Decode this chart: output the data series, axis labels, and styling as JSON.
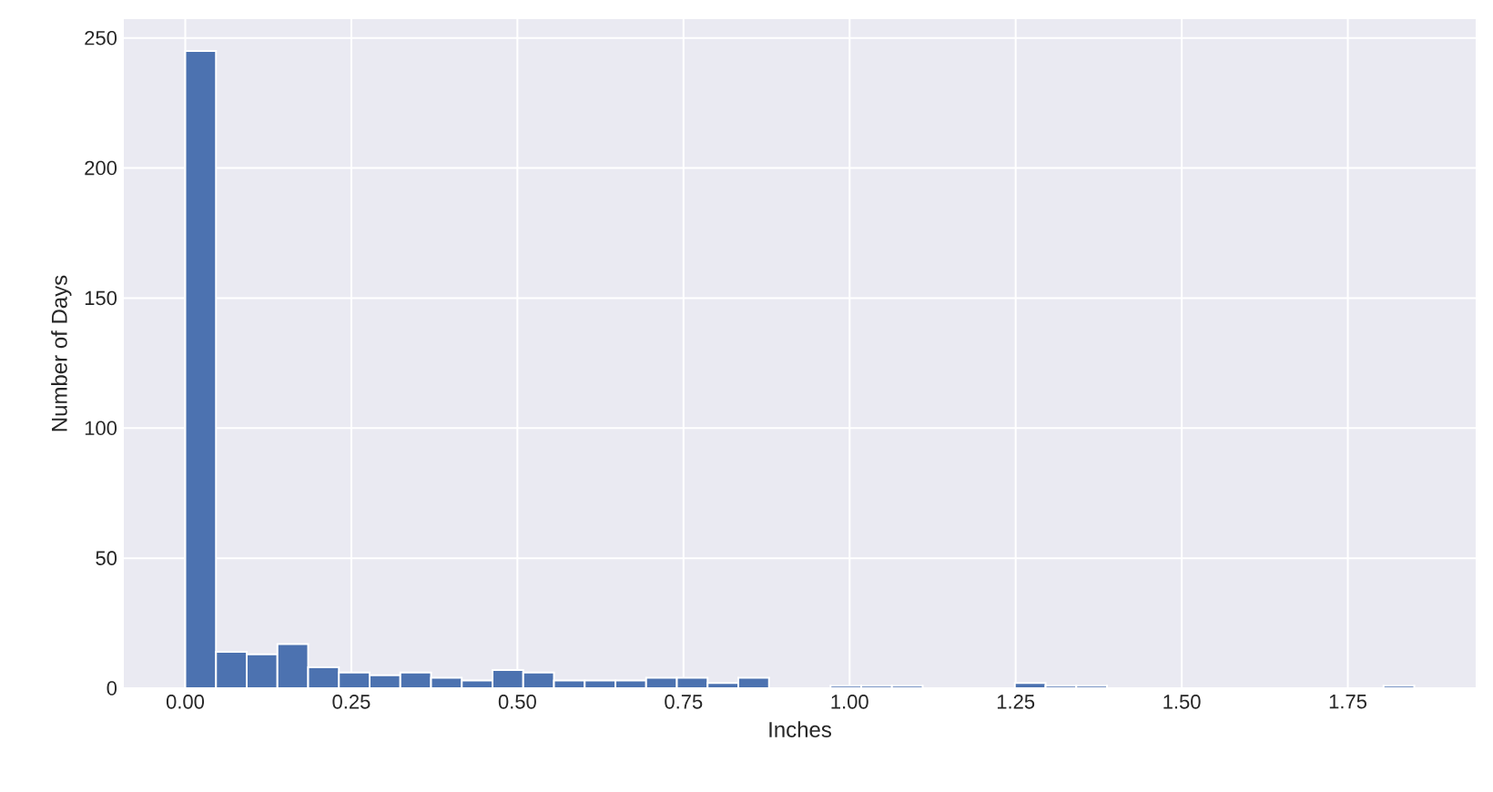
{
  "chart_data": {
    "type": "histogram",
    "xlabel": "Inches",
    "ylabel": "Number of Days",
    "color": "#4c72b0",
    "grid": true,
    "bins": [
      0,
      0.04625,
      0.0925,
      0.13875,
      0.185,
      0.23125,
      0.2775,
      0.32375,
      0.37,
      0.41625,
      0.4625,
      0.50875,
      0.555,
      0.60125,
      0.6475,
      0.69375,
      0.74,
      0.78625,
      0.8325,
      0.87875,
      0.925,
      0.97125,
      1.0175,
      1.06375,
      1.11,
      1.15625,
      1.2025,
      1.24875,
      1.295,
      1.34125,
      1.3875,
      1.43375,
      1.48,
      1.52625,
      1.5725,
      1.61875,
      1.665,
      1.71125,
      1.7575,
      1.80375,
      1.85
    ],
    "values": [
      245,
      14,
      13,
      17,
      8,
      6,
      5,
      6,
      4,
      3,
      7,
      6,
      3,
      3,
      3,
      4,
      4,
      2,
      4,
      0,
      0,
      1,
      1,
      1,
      0,
      0,
      0,
      2,
      1,
      1,
      0,
      0,
      0,
      0,
      0,
      0,
      0,
      0,
      0,
      1
    ],
    "xlim": [
      -0.0925,
      1.9425
    ],
    "ylim": [
      0,
      257.25
    ],
    "xticks": [
      {
        "value": 0,
        "label": "0.00"
      },
      {
        "value": 0.25,
        "label": "0.25"
      },
      {
        "value": 0.5,
        "label": "0.50"
      },
      {
        "value": 0.75,
        "label": "0.75"
      },
      {
        "value": 1,
        "label": "1.00"
      },
      {
        "value": 1.25,
        "label": "1.25"
      },
      {
        "value": 1.5,
        "label": "1.50"
      },
      {
        "value": 1.75,
        "label": "1.75"
      }
    ],
    "yticks": [
      0,
      50,
      100,
      150,
      200,
      250
    ]
  }
}
